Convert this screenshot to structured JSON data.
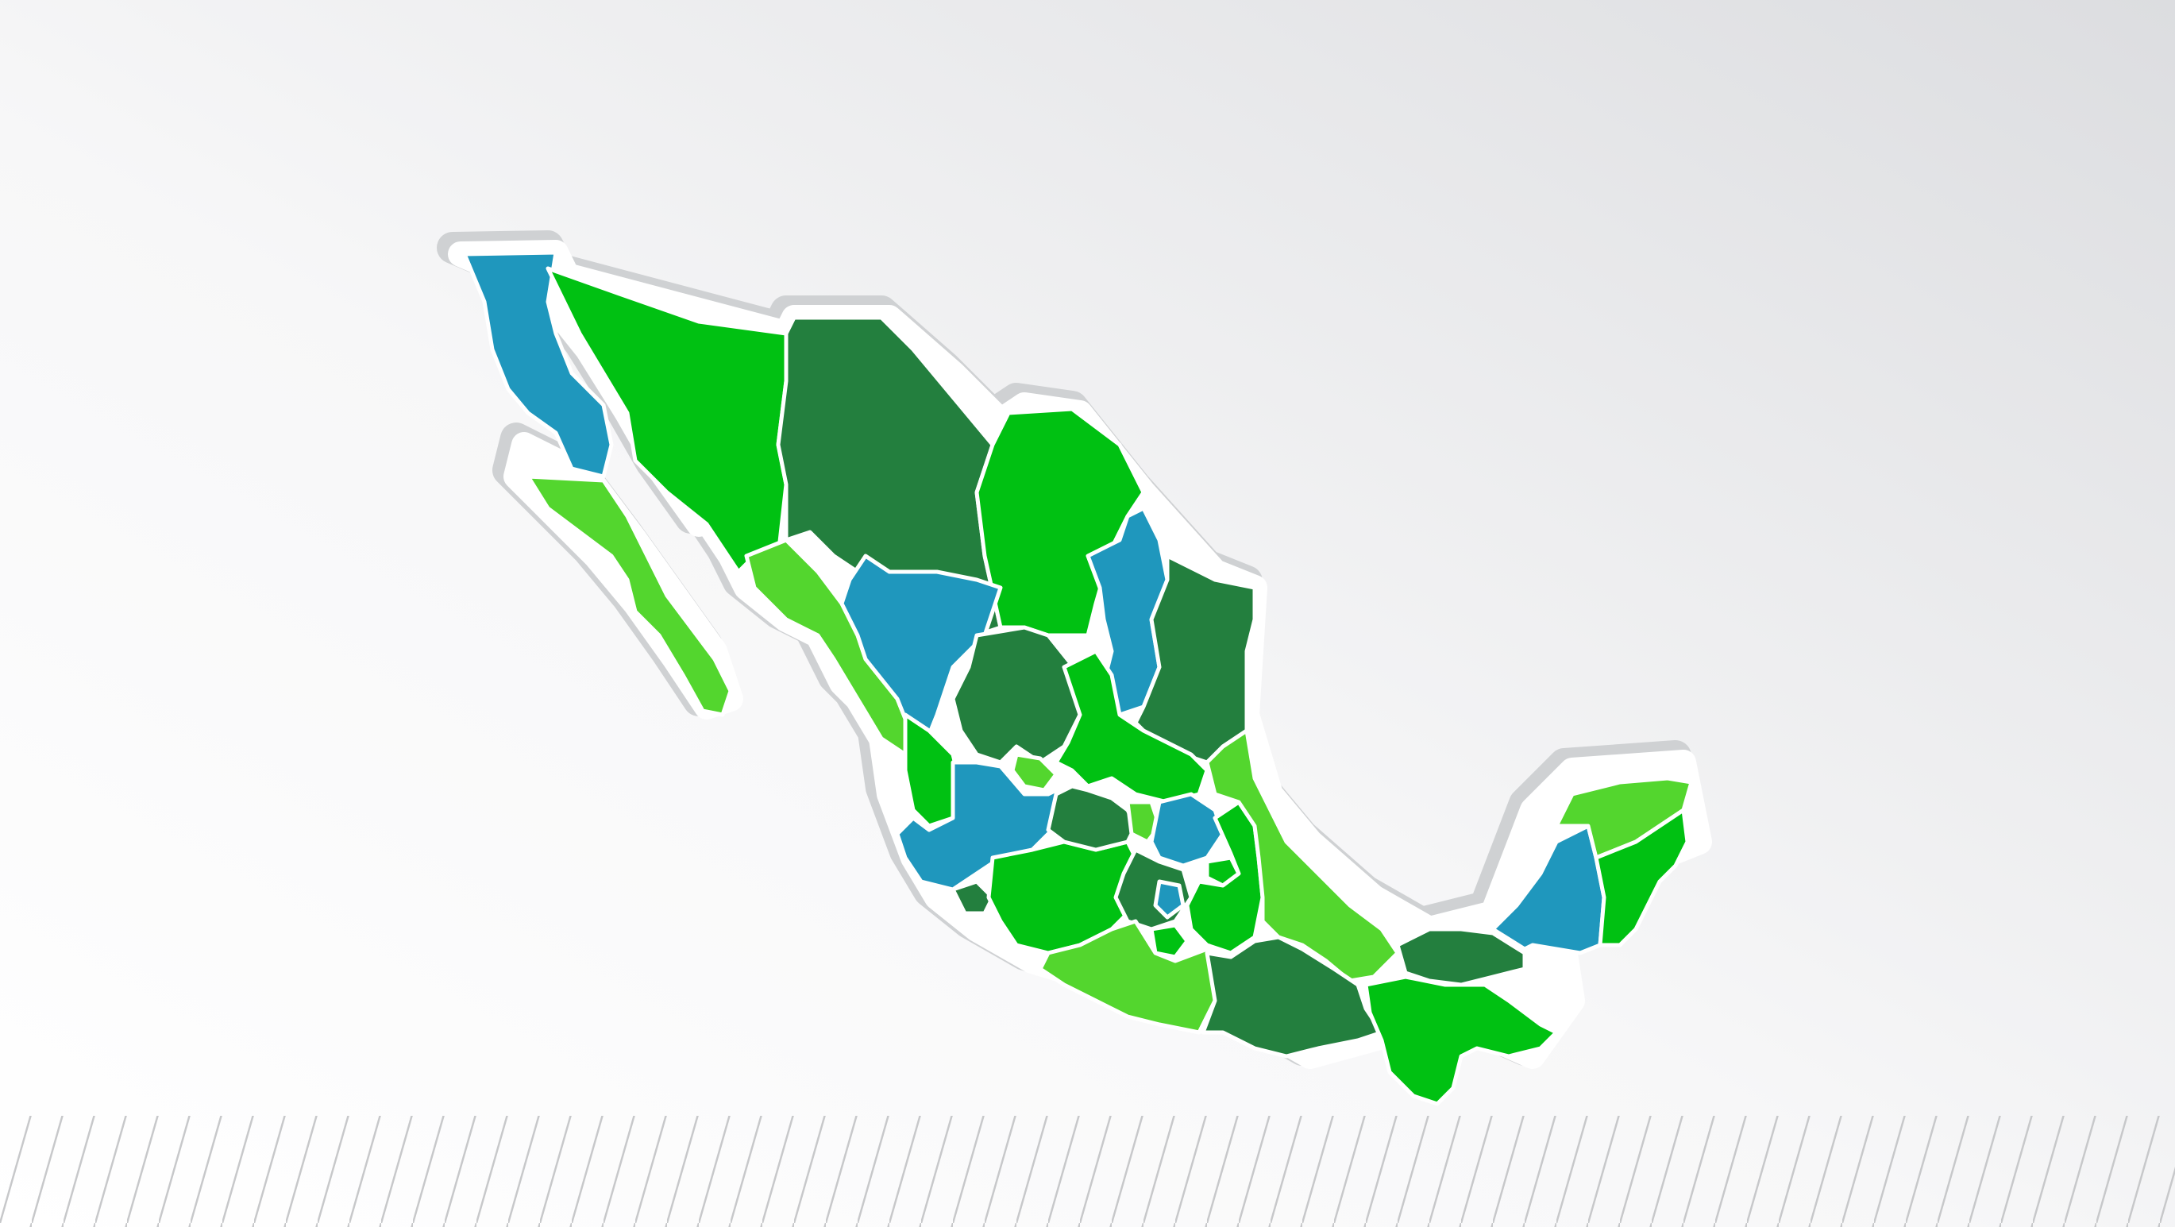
{
  "map": {
    "colors": {
      "blue": "#1f97bd",
      "bright_green": "#00c112",
      "light_green": "#53d62e",
      "dark_green": "#237f3e",
      "outline": "#ffffff",
      "shadow": "#c9cbcd",
      "background_light": "#ffffff",
      "background_dark": "#dcdde0",
      "stripe": "#c7c8ca"
    },
    "states": [
      {
        "id": "baja-california",
        "color": "blue"
      },
      {
        "id": "baja-california-sur",
        "color": "light_green"
      },
      {
        "id": "sonora",
        "color": "bright_green"
      },
      {
        "id": "chihuahua",
        "color": "dark_green"
      },
      {
        "id": "coahuila",
        "color": "bright_green"
      },
      {
        "id": "nuevo-leon",
        "color": "blue"
      },
      {
        "id": "tamaulipas",
        "color": "dark_green"
      },
      {
        "id": "sinaloa",
        "color": "light_green"
      },
      {
        "id": "durango",
        "color": "blue"
      },
      {
        "id": "nayarit",
        "color": "bright_green"
      },
      {
        "id": "zacatecas",
        "color": "dark_green"
      },
      {
        "id": "aguascalientes",
        "color": "light_green"
      },
      {
        "id": "san-luis-potosi",
        "color": "bright_green"
      },
      {
        "id": "jalisco",
        "color": "blue"
      },
      {
        "id": "colima",
        "color": "dark_green"
      },
      {
        "id": "michoacan",
        "color": "bright_green"
      },
      {
        "id": "guanajuato",
        "color": "dark_green"
      },
      {
        "id": "queretaro",
        "color": "light_green"
      },
      {
        "id": "hidalgo",
        "color": "blue"
      },
      {
        "id": "mexico",
        "color": "dark_green"
      },
      {
        "id": "cdmx",
        "color": "blue"
      },
      {
        "id": "morelos",
        "color": "bright_green"
      },
      {
        "id": "tlaxcala",
        "color": "bright_green"
      },
      {
        "id": "puebla",
        "color": "bright_green"
      },
      {
        "id": "veracruz",
        "color": "light_green"
      },
      {
        "id": "guerrero",
        "color": "light_green"
      },
      {
        "id": "oaxaca",
        "color": "dark_green"
      },
      {
        "id": "chiapas",
        "color": "bright_green"
      },
      {
        "id": "tabasco",
        "color": "dark_green"
      },
      {
        "id": "campeche",
        "color": "blue"
      },
      {
        "id": "yucatan",
        "color": "light_green"
      },
      {
        "id": "quintana-roo",
        "color": "bright_green"
      }
    ]
  }
}
